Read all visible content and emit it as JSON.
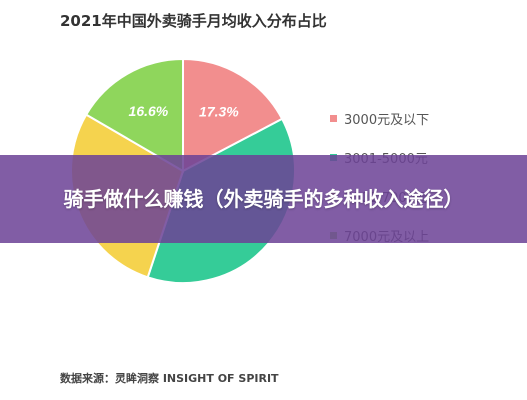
{
  "chart_data": {
    "type": "pie",
    "title": "2021年中国外卖骑手月均收入分布占比",
    "legend_position": "right",
    "slices": [
      {
        "label": "3000元及以下",
        "value": 17.3,
        "value_label": "17.3%",
        "color": "#F28E8E"
      },
      {
        "label": "3001-5000元",
        "value": 37.8,
        "color": "#35CC98"
      },
      {
        "label": "5001-7000元",
        "value": 28.3,
        "color": "#F5D34E"
      },
      {
        "label": "7000元及以上",
        "value": 16.6,
        "value_label": "16.6%",
        "color": "#8FD65C"
      }
    ]
  },
  "banner": {
    "text": "骑手做什么赚钱（外卖骑手的多种收入途径）",
    "background": "#6C4296"
  },
  "source": "数据来源：灵眸洞察 INSIGHT OF SPIRIT"
}
